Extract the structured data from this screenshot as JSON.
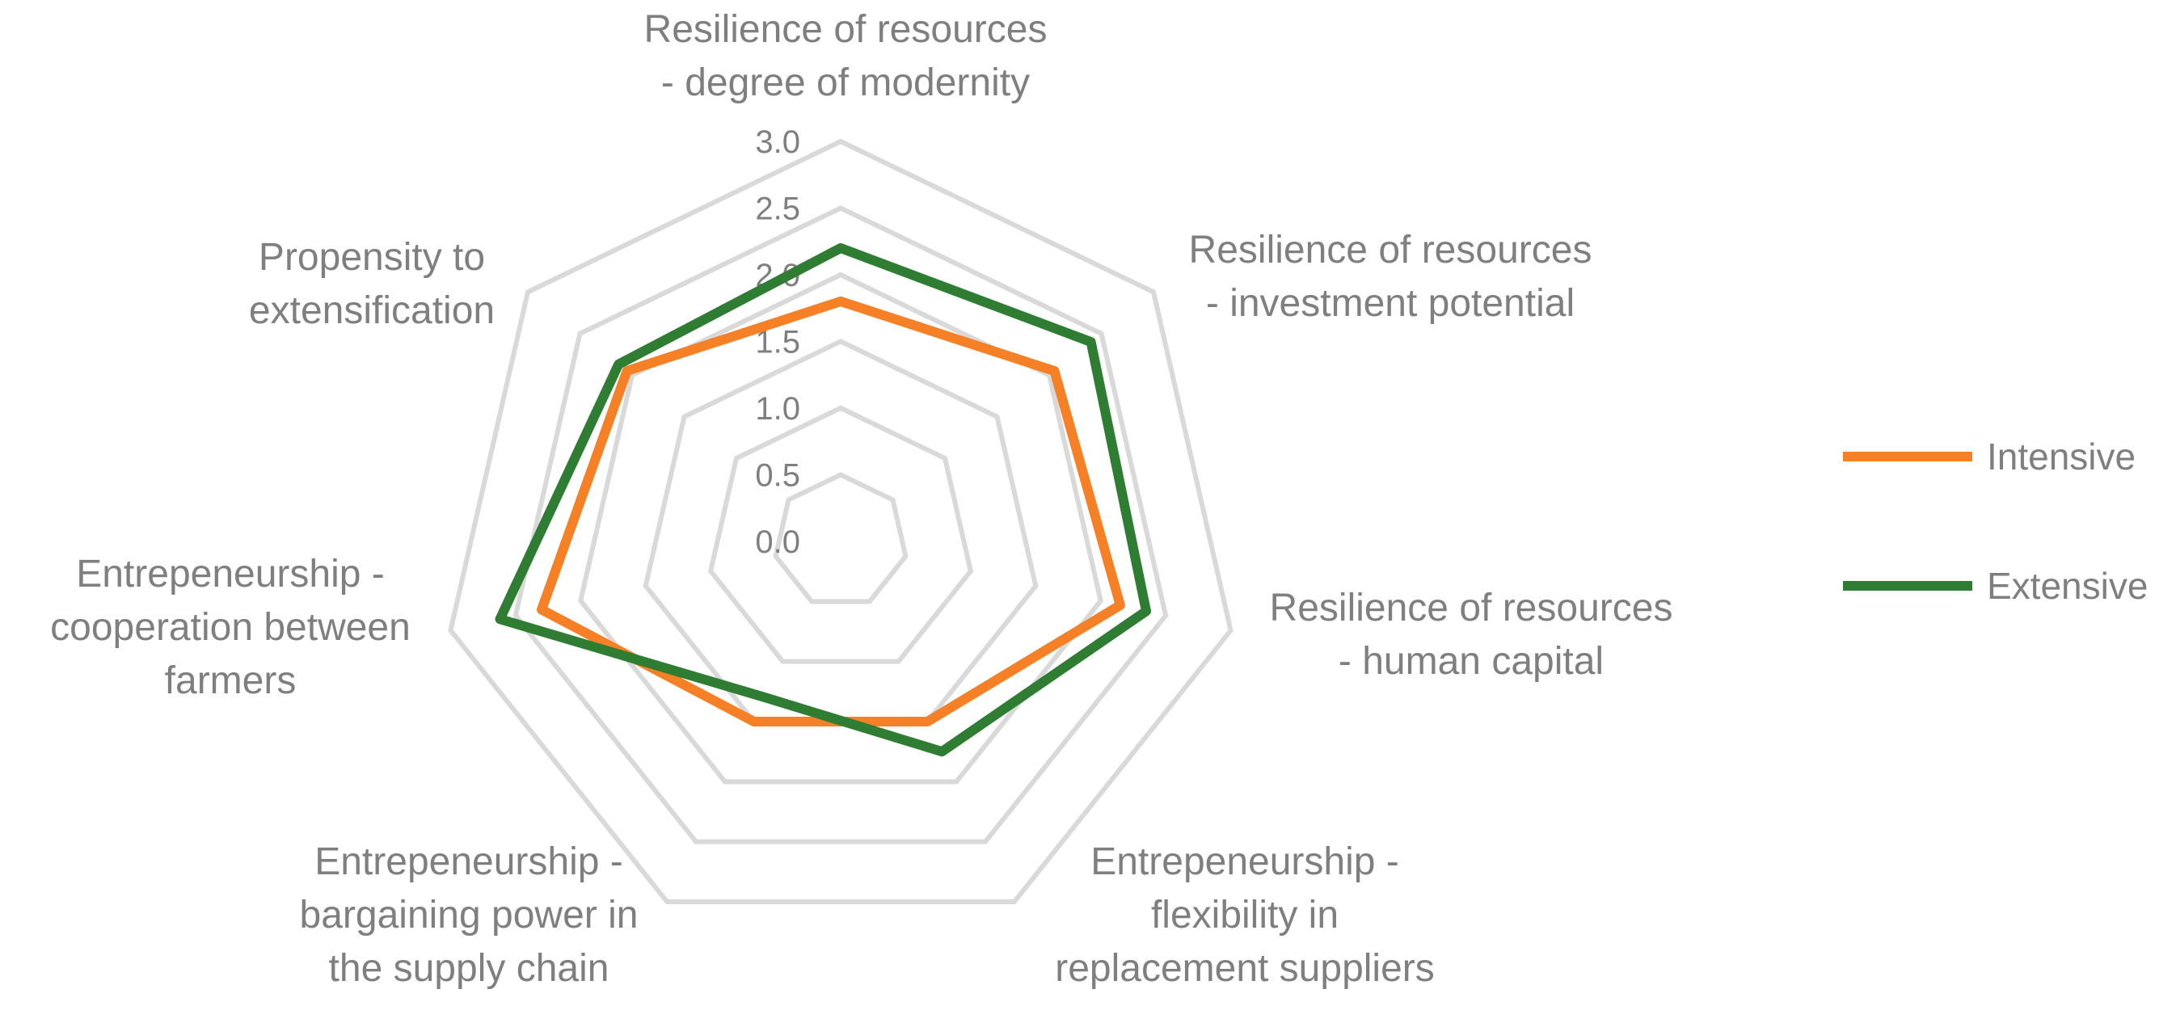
{
  "chart_data": {
    "type": "radar",
    "title": "",
    "categories": [
      [
        "Resilience of resources",
        "- degree of modernity"
      ],
      [
        "Resilience of resources",
        "- investment potential"
      ],
      [
        "Resilience of resources",
        "- human capital"
      ],
      [
        "Entrepeneurship -",
        "flexibility in",
        "replacement suppliers"
      ],
      [
        "Entrepeneurship -",
        "bargaining power in",
        "the supply chain"
      ],
      [
        "Entrepeneurship -",
        "cooperation between",
        "farmers"
      ],
      [
        "Propensity to",
        "extensification"
      ]
    ],
    "rlim": [
      0,
      3
    ],
    "ticks": [
      "0.0",
      "0.5",
      "1.0",
      "1.5",
      "2.0",
      "2.5",
      "3.0"
    ],
    "series": [
      {
        "name": "Intensive",
        "color": "#f58025",
        "values": [
          1.8,
          2.05,
          2.15,
          1.5,
          1.5,
          2.3,
          2.05
        ]
      },
      {
        "name": "Extensive",
        "color": "#2e7d32",
        "values": [
          2.2,
          2.4,
          2.35,
          1.75,
          1.3,
          2.62,
          2.13
        ]
      }
    ],
    "legend_position": "right"
  }
}
